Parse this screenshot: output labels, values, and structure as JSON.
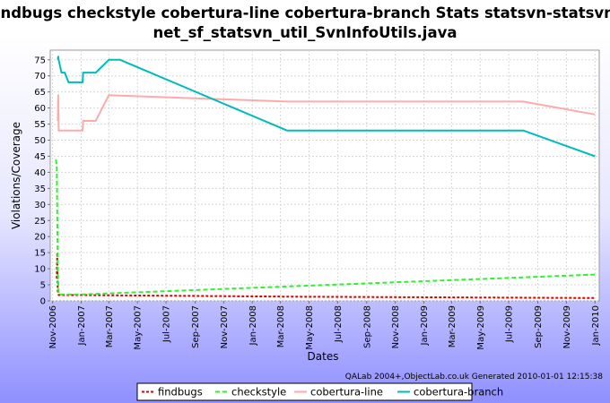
{
  "chart_data": {
    "type": "line",
    "title_lines": [
      "findbugs checkstyle cobertura-line cobertura-branch  Stats statsvn-statsvn-",
      "net_sf_statsvn_util_SvnInfoUtils.java"
    ],
    "xlabel": "Dates",
    "ylabel": "Violations/Coverage",
    "x_ticks": [
      "Nov-2006",
      "Jan-2007",
      "Mar-2007",
      "May-2007",
      "Jul-2007",
      "Sep-2007",
      "Nov-2007",
      "Jan-2008",
      "Mar-2008",
      "May-2008",
      "Jul-2008",
      "Sep-2008",
      "Nov-2008",
      "Jan-2009",
      "Mar-2009",
      "May-2009",
      "Jul-2009",
      "Sep-2009",
      "Nov-2009",
      "Jan-2010"
    ],
    "y_ticks": [
      0,
      5,
      10,
      15,
      20,
      25,
      30,
      35,
      40,
      45,
      50,
      55,
      60,
      65,
      70,
      75
    ],
    "xlim": [
      "2006-10-27",
      "2010-01-10"
    ],
    "ylim": [
      0,
      78
    ],
    "grid": true,
    "legend_position": "bottom",
    "credit": "QALab 2004+,ObjectLab.co.uk Generated 2010-01-01 12:15:38",
    "series": [
      {
        "name": "findbugs",
        "color": "#dd0000",
        "dash": "3,2",
        "points": [
          [
            "2006-11-10",
            7
          ],
          [
            "2006-11-11",
            15
          ],
          [
            "2006-11-12",
            3
          ],
          [
            "2006-11-14",
            1.8
          ],
          [
            "2007-01-01",
            1.8
          ],
          [
            "2008-04-01",
            1.3
          ],
          [
            "2010-01-01",
            0.9
          ]
        ]
      },
      {
        "name": "checkstyle",
        "color": "#33ee33",
        "dash": "5,3",
        "points": [
          [
            "2006-11-08",
            44
          ],
          [
            "2006-11-10",
            42
          ],
          [
            "2006-11-12",
            10
          ],
          [
            "2006-11-14",
            2
          ],
          [
            "2007-01-01",
            2
          ],
          [
            "2010-01-01",
            8.2
          ]
        ]
      },
      {
        "name": "cobertura-line",
        "color": "#ffaaaa",
        "dash": "",
        "points": [
          [
            "2006-11-12",
            56
          ],
          [
            "2006-11-13",
            64
          ],
          [
            "2006-11-14",
            53
          ],
          [
            "2006-11-20",
            53
          ],
          [
            "2007-01-04",
            53
          ],
          [
            "2007-01-05",
            56
          ],
          [
            "2007-02-01",
            56
          ],
          [
            "2007-03-01",
            64
          ],
          [
            "2008-03-15",
            62
          ],
          [
            "2009-08-01",
            62
          ],
          [
            "2010-01-01",
            58
          ]
        ]
      },
      {
        "name": "cobertura-branch",
        "color": "#00bbbb",
        "dash": "",
        "points": [
          [
            "2006-11-12",
            75
          ],
          [
            "2006-11-13",
            76
          ],
          [
            "2006-11-14",
            75
          ],
          [
            "2006-11-20",
            71
          ],
          [
            "2006-11-27",
            71
          ],
          [
            "2006-12-05",
            68
          ],
          [
            "2007-01-04",
            68
          ],
          [
            "2007-01-05",
            71
          ],
          [
            "2007-02-01",
            71
          ],
          [
            "2007-03-01",
            75
          ],
          [
            "2007-03-25",
            75
          ],
          [
            "2008-03-15",
            53
          ],
          [
            "2009-08-01",
            53
          ],
          [
            "2010-01-01",
            45
          ]
        ]
      }
    ]
  }
}
